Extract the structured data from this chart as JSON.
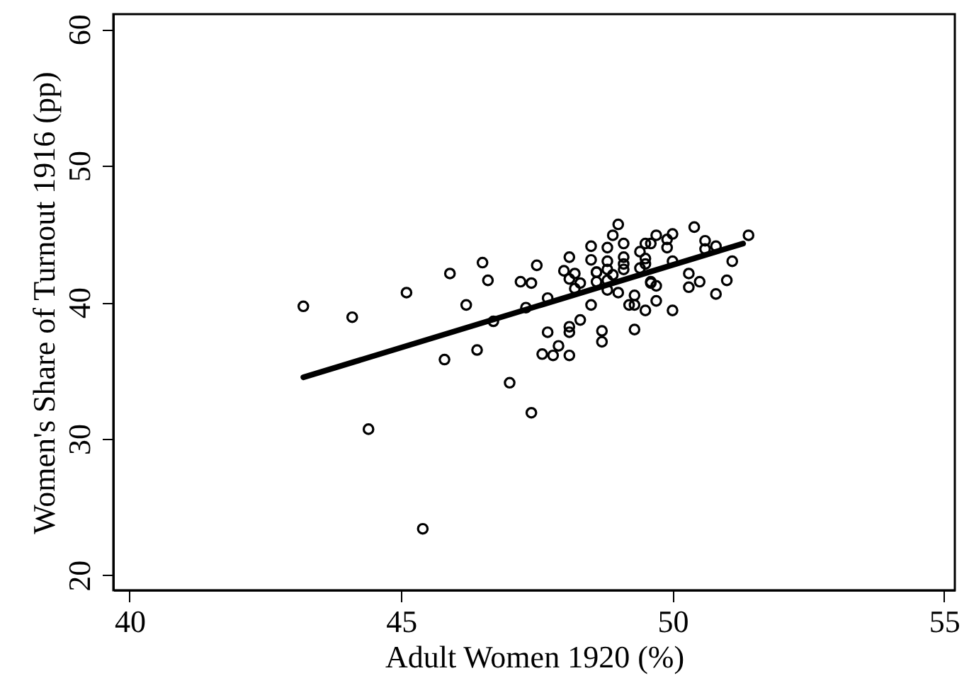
{
  "chart_data": {
    "type": "scatter",
    "xlabel": "Adult Women 1920 (%)",
    "ylabel": "Women's Share of Turnout 1916 (pp)",
    "xlim": [
      39.7,
      55.2
    ],
    "ylim": [
      18.9,
      61.1
    ],
    "xticks": [
      40,
      45,
      50,
      55
    ],
    "yticks": [
      20,
      30,
      40,
      50,
      60
    ],
    "series": [
      {
        "marker": "circle",
        "color": "#000000",
        "x": [
          43.2,
          44.1,
          44.4,
          45.4,
          45.1,
          45.9,
          45.8,
          46.2,
          46.4,
          46.5,
          46.6,
          46.7,
          47.0,
          47.2,
          47.4,
          47.4,
          47.5,
          47.6,
          47.7,
          47.7,
          47.3,
          49.0,
          50.4,
          51.4,
          48.9,
          49.1,
          49.7,
          50.0,
          49.9,
          49.6,
          49.5,
          49.9,
          50.6,
          50.8,
          50.6,
          48.5,
          48.8,
          48.1,
          48.5,
          48.8,
          49.1,
          49.4,
          49.5,
          49.1,
          48.0,
          48.2,
          48.1,
          48.6,
          48.6,
          48.8,
          49.1,
          48.9,
          49.4,
          49.5,
          48.8,
          48.6,
          48.3,
          48.2,
          48.8,
          49.0,
          49.6,
          49.6,
          49.7,
          50.0,
          50.3,
          50.3,
          50.5,
          51.0,
          51.1,
          50.8,
          48.5,
          49.2,
          49.3,
          49.3,
          49.5,
          49.7,
          50.0,
          48.3,
          48.1,
          48.1,
          47.9,
          47.8,
          48.1,
          48.7,
          48.7,
          49.3
        ],
        "values": [
          39.7,
          38.9,
          30.7,
          23.4,
          40.7,
          42.1,
          35.8,
          39.8,
          36.5,
          42.9,
          41.6,
          38.6,
          34.1,
          41.5,
          31.9,
          41.4,
          42.7,
          36.2,
          37.8,
          40.3,
          39.6,
          45.7,
          45.5,
          44.9,
          44.9,
          44.3,
          44.9,
          45.0,
          44.6,
          44.3,
          44.3,
          44.0,
          44.5,
          44.1,
          43.9,
          44.1,
          44.0,
          43.3,
          43.1,
          43.0,
          43.3,
          43.7,
          43.2,
          42.8,
          42.3,
          42.1,
          41.7,
          42.2,
          42.2,
          42.4,
          42.4,
          42.0,
          42.5,
          42.8,
          41.6,
          41.5,
          41.4,
          41.0,
          40.9,
          40.7,
          41.5,
          41.4,
          41.2,
          43.0,
          42.1,
          41.1,
          41.5,
          41.6,
          43.0,
          40.6,
          39.8,
          39.8,
          39.8,
          40.5,
          39.4,
          40.1,
          39.4,
          38.7,
          38.2,
          37.8,
          36.8,
          36.1,
          36.1,
          37.9,
          37.1,
          38.0
        ]
      },
      {
        "type": "line",
        "marker": "none",
        "color": "#000000",
        "x": [
          43.2,
          51.3
        ],
        "values": [
          34.5,
          44.3
        ]
      }
    ]
  }
}
